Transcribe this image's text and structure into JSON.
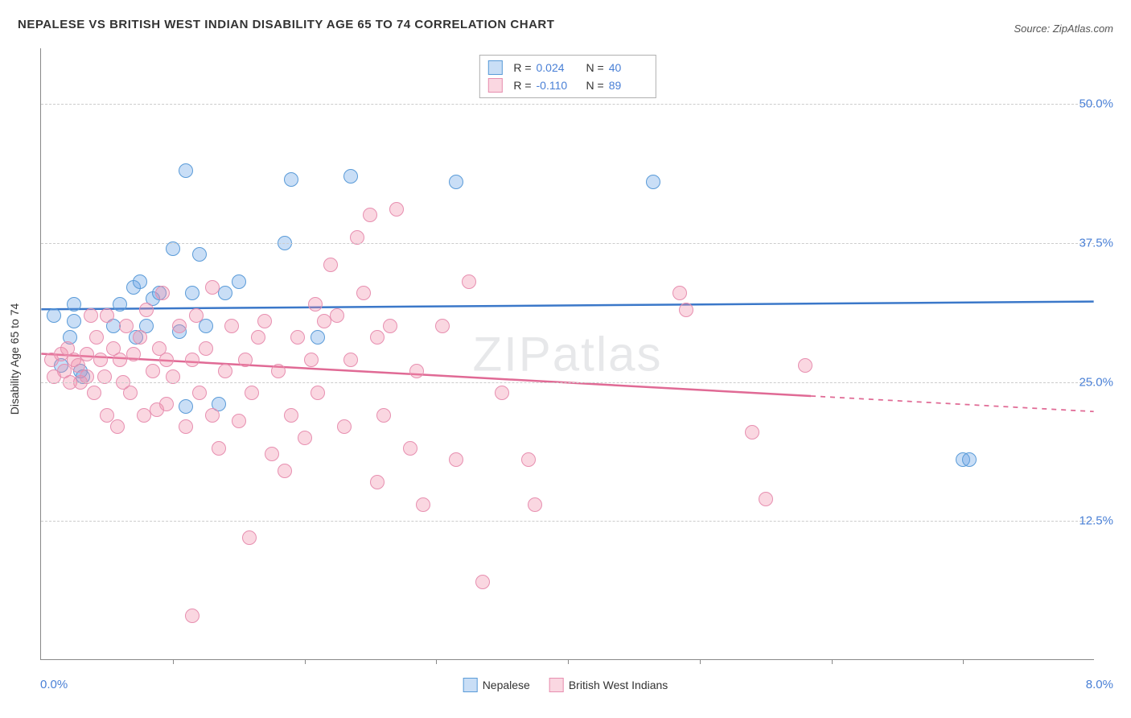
{
  "title": "NEPALESE VS BRITISH WEST INDIAN DISABILITY AGE 65 TO 74 CORRELATION CHART",
  "source_label": "Source: ZipAtlas.com",
  "watermark": "ZIPatlas",
  "ylabel": "Disability Age 65 to 74",
  "chart": {
    "type": "scatter",
    "xlim": [
      0.0,
      8.0
    ],
    "ylim": [
      0.0,
      55.0
    ],
    "x_ticks": [
      1.0,
      2.0,
      3.0,
      4.0,
      5.0,
      6.0,
      7.0
    ],
    "y_gridlines": [
      12.5,
      25.0,
      37.5,
      50.0
    ],
    "y_tick_labels": [
      "12.5%",
      "25.0%",
      "37.5%",
      "50.0%"
    ],
    "x_min_label": "0.0%",
    "x_max_label": "8.0%",
    "background_color": "#ffffff",
    "grid_color": "#cccccc",
    "axis_color": "#888888",
    "marker_radius": 9,
    "marker_border_width": 1.5,
    "trend_line_width": 2.5,
    "series": [
      {
        "name": "Nepalese",
        "fill": "rgba(100,160,230,0.35)",
        "stroke": "#5a9bd8",
        "r_value": "0.024",
        "n_value": "40",
        "trend": {
          "y_at_xmin": 31.5,
          "y_at_xmax": 32.2,
          "solid_until_x": 8.0,
          "color": "#3b78c9"
        },
        "points": [
          [
            0.1,
            31.0
          ],
          [
            0.15,
            26.5
          ],
          [
            0.22,
            29.0
          ],
          [
            0.25,
            30.5
          ],
          [
            0.25,
            32.0
          ],
          [
            0.3,
            26.0
          ],
          [
            0.32,
            25.5
          ],
          [
            0.55,
            30.0
          ],
          [
            0.6,
            32.0
          ],
          [
            0.7,
            33.5
          ],
          [
            0.72,
            29.0
          ],
          [
            0.75,
            34.0
          ],
          [
            0.8,
            30.0
          ],
          [
            0.85,
            32.5
          ],
          [
            0.9,
            33.0
          ],
          [
            1.0,
            37.0
          ],
          [
            1.05,
            29.5
          ],
          [
            1.1,
            22.8
          ],
          [
            1.1,
            44.0
          ],
          [
            1.15,
            33.0
          ],
          [
            1.2,
            36.5
          ],
          [
            1.25,
            30.0
          ],
          [
            1.35,
            23.0
          ],
          [
            1.4,
            33.0
          ],
          [
            1.5,
            34.0
          ],
          [
            1.85,
            37.5
          ],
          [
            1.9,
            43.2
          ],
          [
            2.1,
            29.0
          ],
          [
            2.35,
            43.5
          ],
          [
            3.15,
            43.0
          ],
          [
            4.65,
            43.0
          ],
          [
            7.0,
            18.0
          ],
          [
            7.05,
            18.0
          ]
        ]
      },
      {
        "name": "British West Indians",
        "fill": "rgba(240,140,170,0.35)",
        "stroke": "#e78fb0",
        "r_value": "-0.110",
        "n_value": "89",
        "trend": {
          "y_at_xmin": 27.5,
          "y_at_xmax": 22.3,
          "solid_until_x": 5.85,
          "color": "#e06a95"
        },
        "points": [
          [
            0.08,
            27.0
          ],
          [
            0.1,
            25.5
          ],
          [
            0.15,
            27.5
          ],
          [
            0.18,
            26.0
          ],
          [
            0.2,
            28.0
          ],
          [
            0.22,
            25.0
          ],
          [
            0.25,
            27.0
          ],
          [
            0.28,
            26.5
          ],
          [
            0.3,
            25.0
          ],
          [
            0.35,
            27.5
          ],
          [
            0.35,
            25.5
          ],
          [
            0.38,
            31.0
          ],
          [
            0.4,
            24.0
          ],
          [
            0.42,
            29.0
          ],
          [
            0.45,
            27.0
          ],
          [
            0.48,
            25.5
          ],
          [
            0.5,
            31.0
          ],
          [
            0.5,
            22.0
          ],
          [
            0.55,
            28.0
          ],
          [
            0.58,
            21.0
          ],
          [
            0.6,
            27.0
          ],
          [
            0.62,
            25.0
          ],
          [
            0.65,
            30.0
          ],
          [
            0.68,
            24.0
          ],
          [
            0.7,
            27.5
          ],
          [
            0.75,
            29.0
          ],
          [
            0.78,
            22.0
          ],
          [
            0.8,
            31.5
          ],
          [
            0.85,
            26.0
          ],
          [
            0.88,
            22.5
          ],
          [
            0.9,
            28.0
          ],
          [
            0.92,
            33.0
          ],
          [
            0.95,
            27.0
          ],
          [
            0.95,
            23.0
          ],
          [
            1.0,
            25.5
          ],
          [
            1.05,
            30.0
          ],
          [
            1.1,
            21.0
          ],
          [
            1.15,
            27.0
          ],
          [
            1.15,
            4.0
          ],
          [
            1.18,
            31.0
          ],
          [
            1.2,
            24.0
          ],
          [
            1.25,
            28.0
          ],
          [
            1.3,
            22.0
          ],
          [
            1.3,
            33.5
          ],
          [
            1.35,
            19.0
          ],
          [
            1.4,
            26.0
          ],
          [
            1.45,
            30.0
          ],
          [
            1.5,
            21.5
          ],
          [
            1.55,
            27.0
          ],
          [
            1.58,
            11.0
          ],
          [
            1.6,
            24.0
          ],
          [
            1.65,
            29.0
          ],
          [
            1.7,
            30.5
          ],
          [
            1.75,
            18.5
          ],
          [
            1.8,
            26.0
          ],
          [
            1.85,
            17.0
          ],
          [
            1.9,
            22.0
          ],
          [
            1.95,
            29.0
          ],
          [
            2.0,
            20.0
          ],
          [
            2.05,
            27.0
          ],
          [
            2.08,
            32.0
          ],
          [
            2.1,
            24.0
          ],
          [
            2.15,
            30.5
          ],
          [
            2.2,
            35.5
          ],
          [
            2.25,
            31.0
          ],
          [
            2.3,
            21.0
          ],
          [
            2.35,
            27.0
          ],
          [
            2.4,
            38.0
          ],
          [
            2.45,
            33.0
          ],
          [
            2.5,
            40.0
          ],
          [
            2.55,
            29.0
          ],
          [
            2.55,
            16.0
          ],
          [
            2.6,
            22.0
          ],
          [
            2.65,
            30.0
          ],
          [
            2.7,
            40.5
          ],
          [
            2.8,
            19.0
          ],
          [
            2.85,
            26.0
          ],
          [
            2.9,
            14.0
          ],
          [
            3.05,
            30.0
          ],
          [
            3.15,
            18.0
          ],
          [
            3.25,
            34.0
          ],
          [
            3.35,
            7.0
          ],
          [
            3.5,
            24.0
          ],
          [
            3.7,
            18.0
          ],
          [
            3.75,
            14.0
          ],
          [
            4.85,
            33.0
          ],
          [
            4.9,
            31.5
          ],
          [
            5.4,
            20.5
          ],
          [
            5.5,
            14.5
          ],
          [
            5.8,
            26.5
          ]
        ]
      }
    ]
  },
  "legend_bottom": [
    {
      "label": "Nepalese",
      "fill": "rgba(100,160,230,0.35)",
      "stroke": "#5a9bd8"
    },
    {
      "label": "British West Indians",
      "fill": "rgba(240,140,170,0.35)",
      "stroke": "#e78fb0"
    }
  ]
}
